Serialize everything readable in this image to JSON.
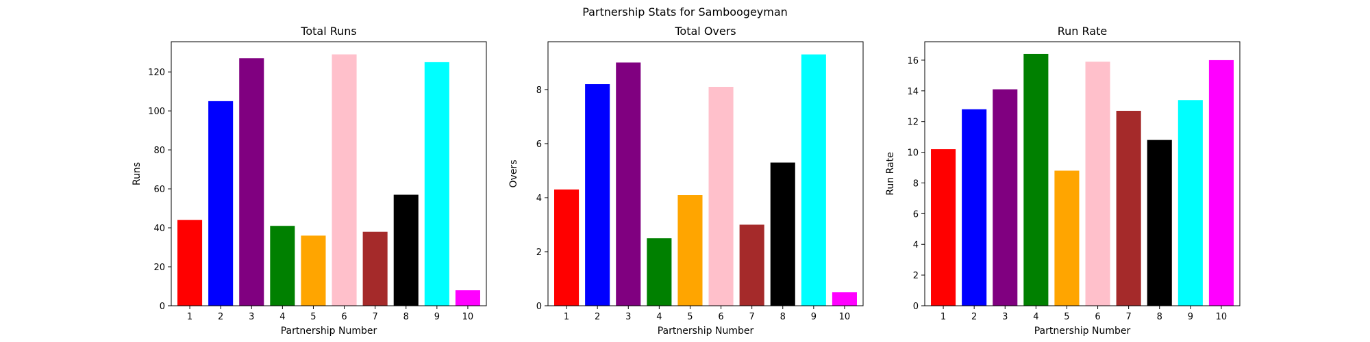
{
  "figure": {
    "suptitle": "Partnership Stats for Samboogeyman"
  },
  "chart_data": [
    {
      "type": "bar",
      "title": "Total Runs",
      "xlabel": "Partnership Number",
      "ylabel": "Runs",
      "categories": [
        "1",
        "2",
        "3",
        "4",
        "5",
        "6",
        "7",
        "8",
        "9",
        "10"
      ],
      "values": [
        44,
        105,
        127,
        41,
        36,
        129,
        38,
        57,
        125,
        8
      ],
      "ylim": [
        0,
        135.5
      ],
      "yticks": [
        0,
        20,
        40,
        60,
        80,
        100,
        120
      ],
      "grid": false,
      "colors": [
        "#ff0000",
        "#0000ff",
        "#800080",
        "#008000",
        "#ffa500",
        "#ffc0cb",
        "#a52a2a",
        "#000000",
        "#00ffff",
        "#ff00ff"
      ]
    },
    {
      "type": "bar",
      "title": "Total Overs",
      "xlabel": "Partnership Number",
      "ylabel": "Overs",
      "categories": [
        "1",
        "2",
        "3",
        "4",
        "5",
        "6",
        "7",
        "8",
        "9",
        "10"
      ],
      "values": [
        4.3,
        8.2,
        9.0,
        2.5,
        4.1,
        8.1,
        3.0,
        5.3,
        9.3,
        0.5
      ],
      "ylim": [
        0,
        9.77
      ],
      "yticks": [
        0,
        2,
        4,
        6,
        8
      ],
      "grid": false,
      "colors": [
        "#ff0000",
        "#0000ff",
        "#800080",
        "#008000",
        "#ffa500",
        "#ffc0cb",
        "#a52a2a",
        "#000000",
        "#00ffff",
        "#ff00ff"
      ]
    },
    {
      "type": "bar",
      "title": "Run Rate",
      "xlabel": "Partnership Number",
      "ylabel": "Run Rate",
      "categories": [
        "1",
        "2",
        "3",
        "4",
        "5",
        "6",
        "7",
        "8",
        "9",
        "10"
      ],
      "values": [
        10.2,
        12.8,
        14.1,
        16.4,
        8.8,
        15.9,
        12.7,
        10.8,
        13.4,
        16.0
      ],
      "ylim": [
        0,
        17.2
      ],
      "yticks": [
        0,
        2,
        4,
        6,
        8,
        10,
        12,
        14,
        16
      ],
      "grid": false,
      "colors": [
        "#ff0000",
        "#0000ff",
        "#800080",
        "#008000",
        "#ffa500",
        "#ffc0cb",
        "#a52a2a",
        "#000000",
        "#00ffff",
        "#ff00ff"
      ]
    }
  ]
}
